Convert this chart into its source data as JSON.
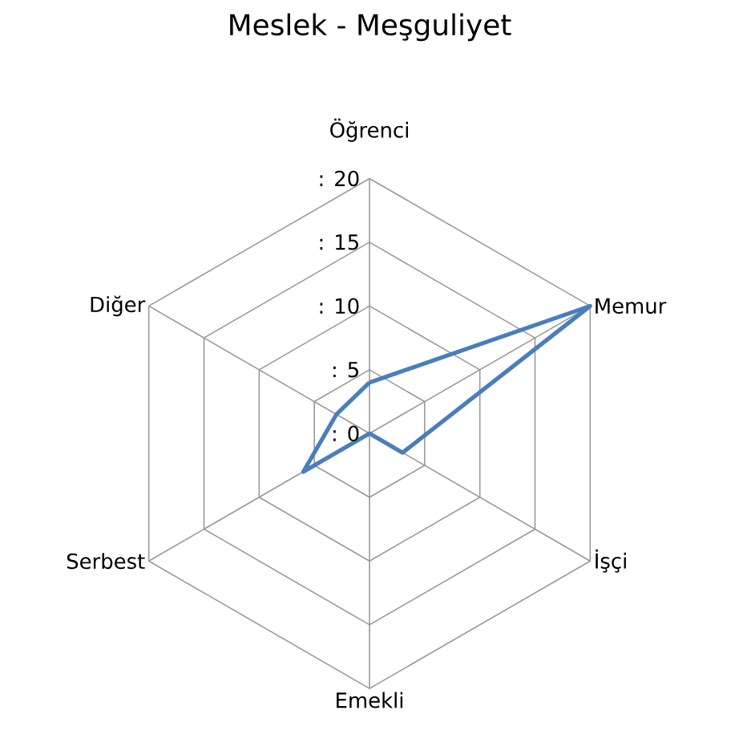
{
  "chart_data": {
    "type": "radar",
    "title": "Meslek - Meşguliyet",
    "categories": [
      "Öğrenci",
      "Memur",
      "İşçi",
      "Emekli",
      "Serbest",
      "Diğer"
    ],
    "series": [
      {
        "color": "#4a7ebb",
        "values": [
          4,
          20,
          3,
          0,
          6,
          3
        ]
      }
    ],
    "ylim": [
      0,
      20
    ],
    "yticks": [
      {
        "value": 0,
        "label": ": 0"
      },
      {
        "value": 5,
        "label": ": 5"
      },
      {
        "value": 10,
        "label": ": 10"
      },
      {
        "value": 15,
        "label": ": 15"
      },
      {
        "value": 20,
        "label": ": 20"
      }
    ],
    "grid": true,
    "marker": "none",
    "line_style": "solid"
  }
}
